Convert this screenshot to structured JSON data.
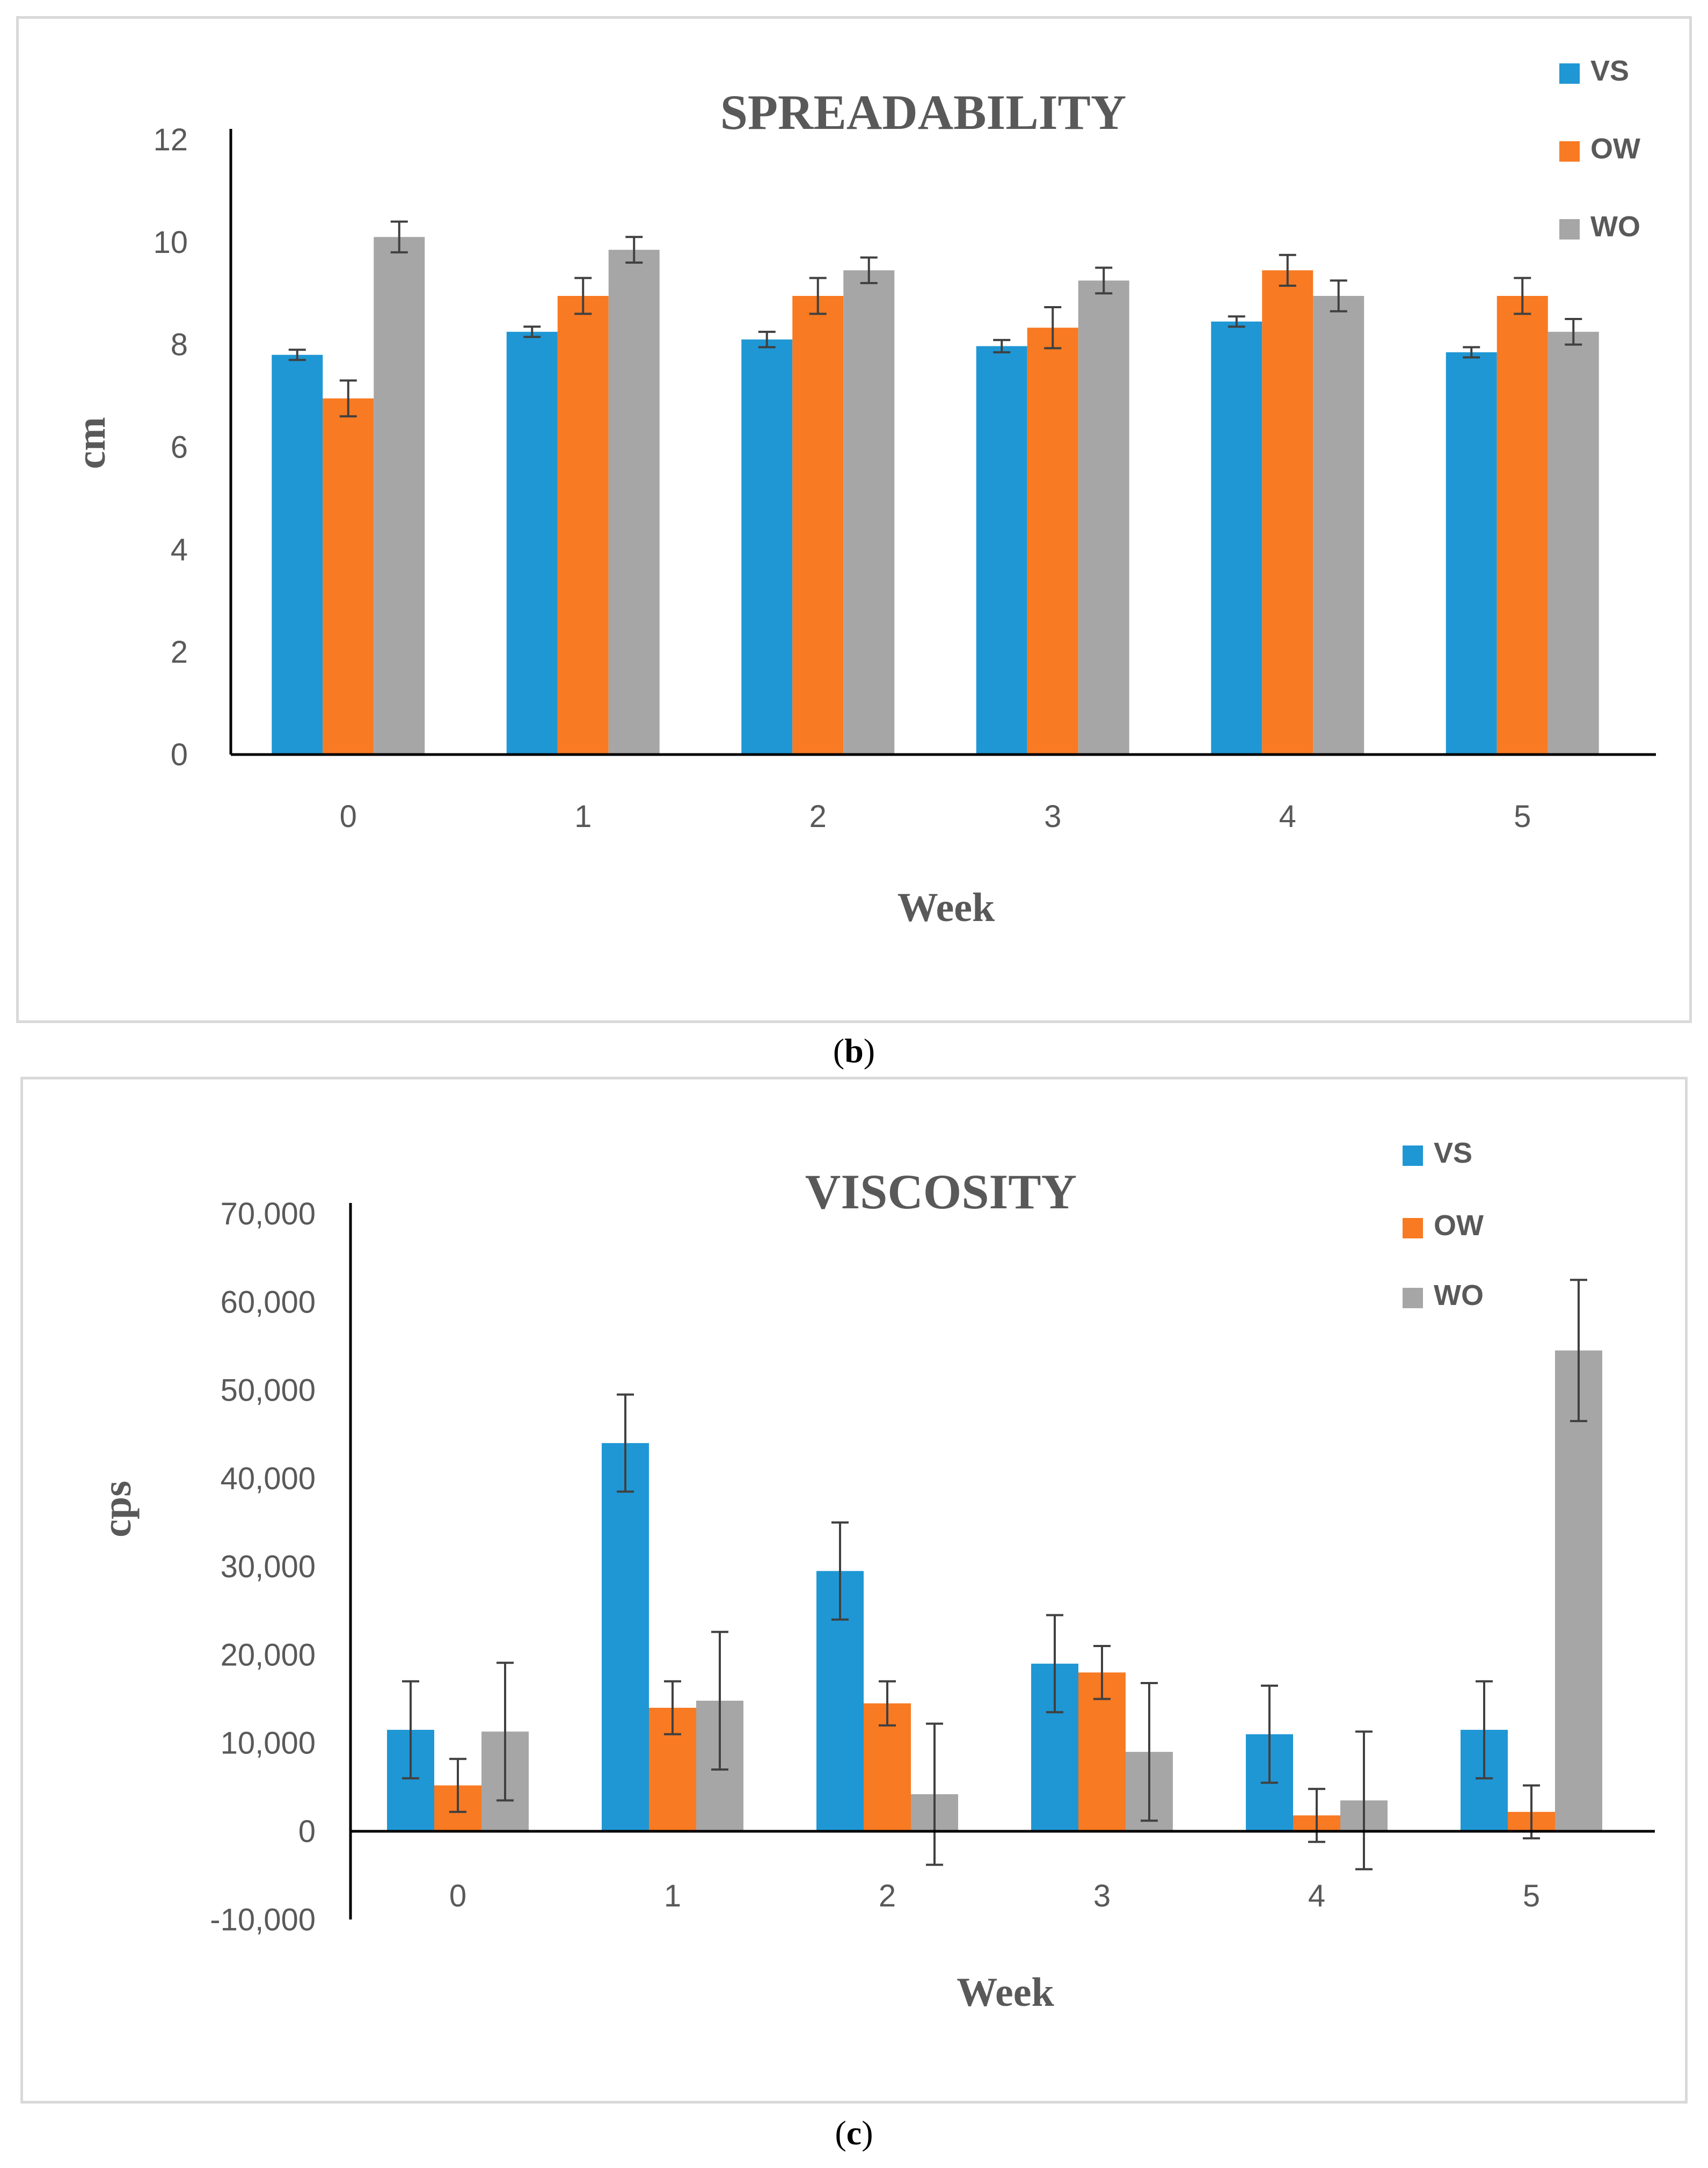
{
  "captions": {
    "b_open": "(",
    "b_letter": "b",
    "b_close": ")",
    "c_open": "(",
    "c_letter": "c",
    "c_close": ")"
  },
  "colors": {
    "VS": "#1F97D4",
    "OW": "#F87A22",
    "WO": "#A6A6A6",
    "errbar": "#404040"
  },
  "chart_data": [
    {
      "type": "bar",
      "title": "SPREADABILITY",
      "xlabel": "Week",
      "ylabel": "cm",
      "ylim": [
        0,
        12
      ],
      "yticks": [
        0,
        2,
        4,
        6,
        8,
        10,
        12
      ],
      "ytick_labels": [
        "0",
        "2",
        "4",
        "6",
        "8",
        "10",
        "12"
      ],
      "categories": [
        "0",
        "1",
        "2",
        "3",
        "4",
        "5"
      ],
      "legend_position": "top-right",
      "series": [
        {
          "name": "VS",
          "values": [
            7.8,
            8.25,
            8.1,
            7.97,
            8.45,
            7.85
          ],
          "errors": [
            0.1,
            0.1,
            0.15,
            0.12,
            0.1,
            0.1
          ]
        },
        {
          "name": "OW",
          "values": [
            6.95,
            8.95,
            8.95,
            8.33,
            9.45,
            8.95
          ],
          "errors": [
            0.35,
            0.35,
            0.35,
            0.4,
            0.3,
            0.35
          ]
        },
        {
          "name": "WO",
          "values": [
            10.1,
            9.85,
            9.45,
            9.25,
            8.95,
            8.25
          ],
          "errors": [
            0.3,
            0.25,
            0.25,
            0.25,
            0.3,
            0.25
          ]
        }
      ]
    },
    {
      "type": "bar",
      "title": "VISCOSITY",
      "xlabel": "Week",
      "ylabel": "cps",
      "ylim": [
        -10000,
        70000
      ],
      "yticks": [
        -10000,
        0,
        10000,
        20000,
        30000,
        40000,
        50000,
        60000,
        70000
      ],
      "ytick_labels": [
        "-10,000",
        "0",
        "10,000",
        "20,000",
        "30,000",
        "40,000",
        "50,000",
        "60,000",
        "70,000"
      ],
      "categories": [
        "0",
        "1",
        "2",
        "3",
        "4",
        "5"
      ],
      "legend_position": "top-right",
      "series": [
        {
          "name": "VS",
          "values": [
            11500,
            44000,
            29500,
            19000,
            11000,
            11500
          ],
          "errors": [
            5500,
            5500,
            5500,
            5500,
            5500,
            5500
          ]
        },
        {
          "name": "OW",
          "values": [
            5200,
            14000,
            14500,
            18000,
            1800,
            2200
          ],
          "errors": [
            3000,
            3000,
            2500,
            3000,
            3000,
            3000
          ]
        },
        {
          "name": "WO",
          "values": [
            11300,
            14800,
            4200,
            9000,
            3500,
            54500
          ],
          "errors": [
            7800,
            7800,
            8000,
            7800,
            7800,
            8000
          ]
        }
      ]
    }
  ]
}
